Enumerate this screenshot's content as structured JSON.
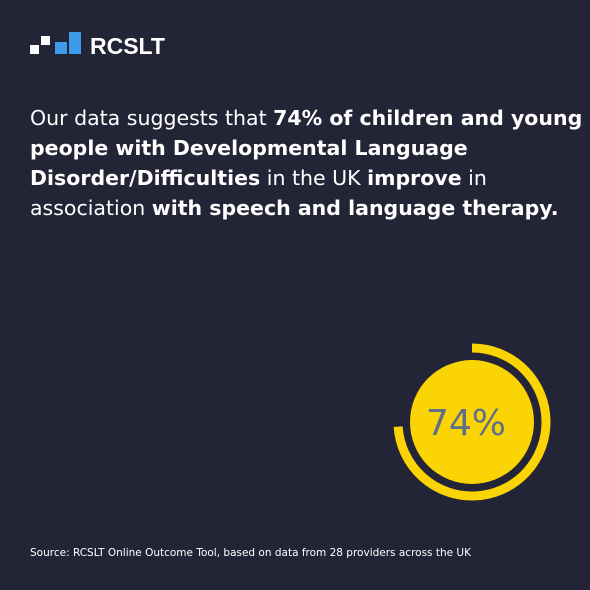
{
  "logo": "RCSLT",
  "headline": [
    [
      {
        "text": "Our data suggests that ",
        "bold": false
      },
      {
        "text": "74% of children and young",
        "bold": true
      }
    ],
    [
      {
        "text": "people with Developmental Language",
        "bold": true
      }
    ],
    [
      {
        "text": "Disorder/Difficulties",
        "bold": true
      },
      {
        "text": " in the UK ",
        "bold": false
      },
      {
        "text": "improve",
        "bold": true
      },
      {
        "text": " in",
        "bold": false
      }
    ],
    [
      {
        "text": "association ",
        "bold": false
      },
      {
        "text": "with speech and language therapy.",
        "bold": true
      }
    ]
  ],
  "chart_data": {
    "type": "donut",
    "values": [
      74
    ],
    "value_labels": [
      "74%"
    ],
    "ylim": [
      0,
      100
    ],
    "color": "#fad404",
    "source": "Source: RCSLT Online Outcome Tool, based on data from 28 providers across the UK"
  }
}
